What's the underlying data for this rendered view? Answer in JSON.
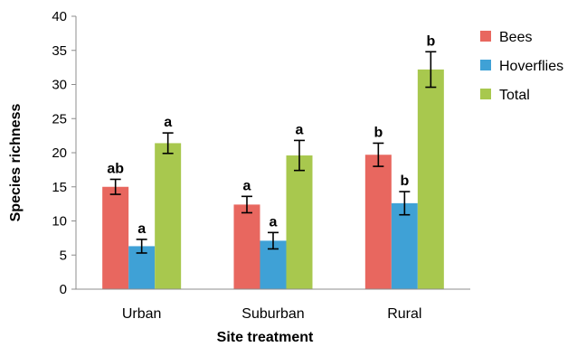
{
  "chart_data": {
    "type": "bar",
    "xlabel": "Site treatment",
    "ylabel": "Species richness",
    "ylim": [
      0,
      40
    ],
    "yticks": [
      0,
      5,
      10,
      15,
      20,
      25,
      30,
      35,
      40
    ],
    "categories": [
      "Urban",
      "Suburban",
      "Rural"
    ],
    "grid": false,
    "legend_position": "top-right",
    "error_bars": true,
    "series": [
      {
        "name": "Bees",
        "color": "#e8675f",
        "values": [
          15.0,
          12.4,
          19.7
        ],
        "errors": [
          1.1,
          1.2,
          1.7
        ],
        "labels": [
          "ab",
          "a",
          "b"
        ]
      },
      {
        "name": "Hoverflies",
        "color": "#3fa1d6",
        "values": [
          6.3,
          7.1,
          12.6
        ],
        "errors": [
          1.0,
          1.2,
          1.7
        ],
        "labels": [
          "a",
          "a",
          "b"
        ]
      },
      {
        "name": "Total",
        "color": "#a8c84e",
        "values": [
          21.4,
          19.6,
          32.2
        ],
        "errors": [
          1.5,
          2.2,
          2.6
        ],
        "labels": [
          "a",
          "a",
          "b"
        ]
      }
    ]
  }
}
